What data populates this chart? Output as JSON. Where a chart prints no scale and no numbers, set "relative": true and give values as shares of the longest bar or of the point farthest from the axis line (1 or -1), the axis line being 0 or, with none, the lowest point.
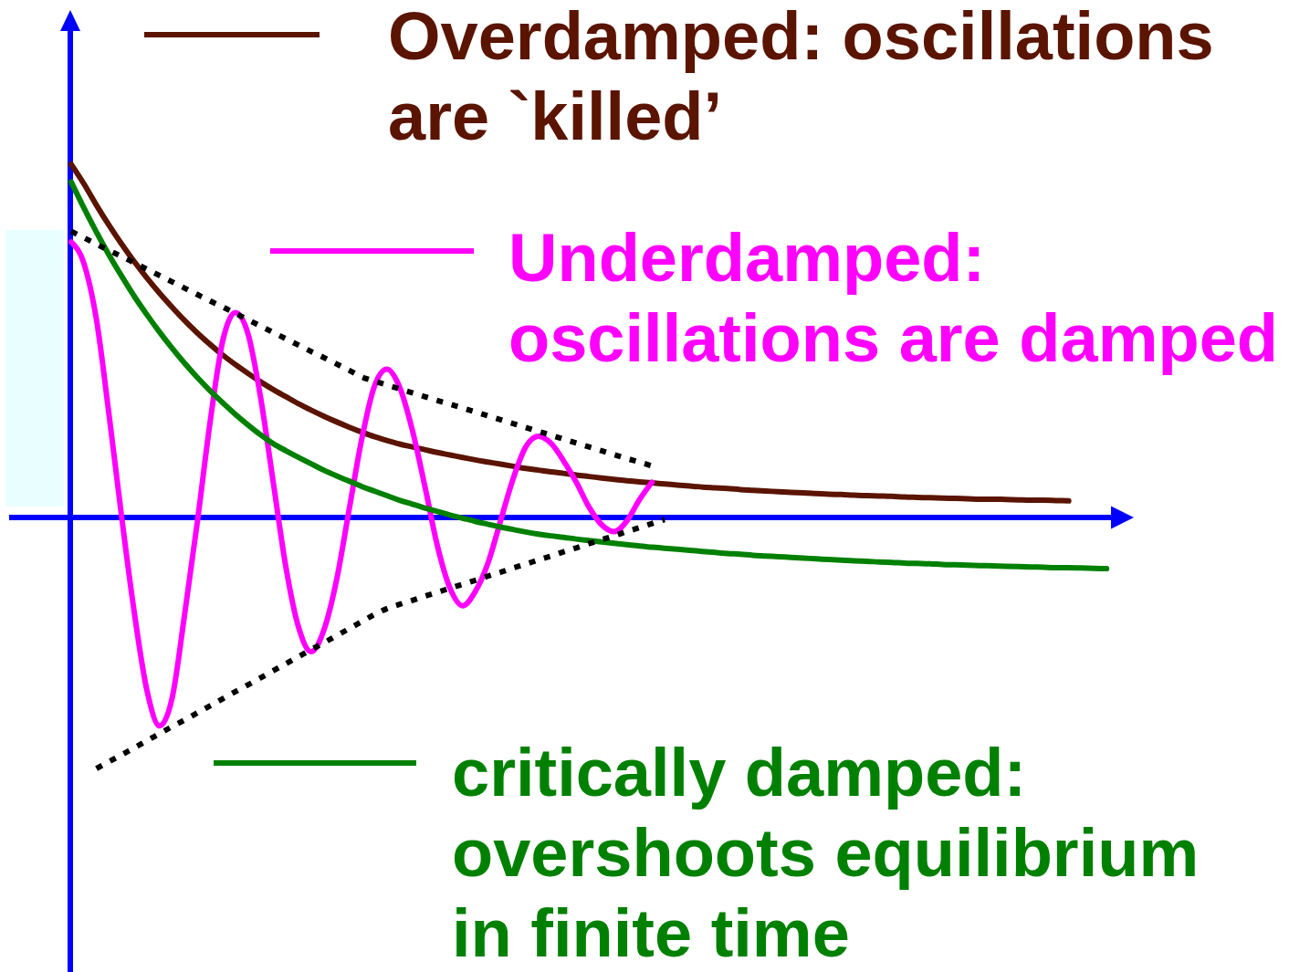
{
  "chart_data": {
    "type": "line",
    "relative": true,
    "legend": "right",
    "categories": [
      null,
      null,
      null,
      null,
      null,
      null,
      null,
      null,
      null,
      null,
      null,
      null,
      null,
      null,
      null,
      null,
      null,
      null,
      null,
      null,
      null,
      null,
      null,
      null,
      null,
      null,
      null,
      null,
      null,
      null,
      null,
      null,
      null,
      null,
      null,
      null,
      null,
      null,
      null,
      null,
      null,
      null,
      null,
      null,
      null,
      null,
      null,
      null,
      null,
      null,
      null,
      null,
      null,
      null,
      null,
      null,
      null,
      null,
      null,
      null,
      null,
      null,
      null,
      null,
      null,
      null,
      null,
      null,
      null,
      null,
      null,
      null,
      null,
      null,
      null,
      null,
      null,
      null,
      null,
      null,
      null,
      null,
      null,
      null
    ],
    "ref_lines": [
      {
        "axis": "y",
        "value": 0,
        "color": "#0000ff"
      }
    ],
    "series": [
      {
        "name": "Overdamped: oscillations are `killed’",
        "color": "#5a1400",
        "values": [
          1,
          0.945,
          0.884,
          0.827,
          0.774,
          0.724,
          0.678,
          0.635,
          0.595,
          0.557,
          0.522,
          0.49,
          0.46,
          0.433,
          0.408,
          0.384,
          0.362,
          0.342,
          0.322,
          0.304,
          0.287,
          0.271,
          0.256,
          0.242,
          0.229,
          0.218,
          0.208,
          0.2,
          0.192,
          0.184,
          0.177,
          0.17,
          0.163,
          0.157,
          0.151,
          0.145,
          0.139,
          0.134,
          0.129,
          0.125,
          0.12,
          0.116,
          0.112,
          0.108,
          0.104,
          0.101,
          0.098,
          0.095,
          0.092,
          0.089,
          0.086,
          0.084,
          0.082,
          0.079,
          0.077,
          0.075,
          0.073,
          0.071,
          0.07,
          0.068,
          0.066,
          0.065,
          0.063,
          0.062,
          0.061,
          0.06,
          0.058,
          0.057,
          0.056,
          0.055,
          0.054,
          0.053,
          0.052,
          0.052,
          0.051,
          0.05,
          0.049,
          0.049,
          0.048,
          0.047,
          null,
          null,
          null,
          null
        ]
      },
      {
        "name": "Underdamped: oscillations are damped",
        "color": "#ff00ff",
        "values": [
          0.78,
          0.72,
          0.56,
          0.29,
          0.0,
          -0.27,
          -0.49,
          -0.59,
          -0.51,
          -0.27,
          -0.01,
          0.27,
          0.5,
          0.58,
          0.52,
          0.34,
          0.1,
          -0.14,
          -0.31,
          -0.38,
          -0.32,
          -0.18,
          0.02,
          0.22,
          0.37,
          0.42,
          0.37,
          0.25,
          0.09,
          -0.08,
          -0.2,
          -0.25,
          -0.21,
          -0.13,
          -0.01,
          0.11,
          0.2,
          0.23,
          0.21,
          0.16,
          0.1,
          0.03,
          -0.02,
          -0.04,
          -0.01,
          0.05,
          0.1,
          null,
          null,
          null,
          null,
          null,
          null,
          null,
          null,
          null,
          null,
          null,
          null,
          null,
          null,
          null,
          null,
          null,
          null,
          null,
          null,
          null,
          null,
          null,
          null,
          null,
          null,
          null,
          null,
          null,
          null,
          null,
          null,
          null,
          null,
          null,
          null,
          null
        ]
      },
      {
        "name": "critically damped: overshoots equilibrium in finite time",
        "color": "#008000",
        "values": [
          0.95,
          0.877,
          0.808,
          0.743,
          0.683,
          0.626,
          0.574,
          0.525,
          0.479,
          0.436,
          0.396,
          0.359,
          0.325,
          0.292,
          0.262,
          0.234,
          0.209,
          0.189,
          0.17,
          0.152,
          0.134,
          0.118,
          0.103,
          0.088,
          0.075,
          0.062,
          0.049,
          0.038,
          0.027,
          0.017,
          0.007,
          -0.002,
          -0.011,
          -0.019,
          -0.027,
          -0.034,
          -0.041,
          -0.047,
          -0.052,
          -0.056,
          -0.061,
          -0.065,
          -0.069,
          -0.073,
          -0.077,
          -0.081,
          -0.084,
          -0.087,
          -0.09,
          -0.093,
          -0.096,
          -0.099,
          -0.102,
          -0.104,
          -0.107,
          -0.109,
          -0.111,
          -0.113,
          -0.115,
          -0.117,
          -0.119,
          -0.121,
          -0.123,
          -0.124,
          -0.126,
          -0.127,
          -0.129,
          -0.13,
          -0.131,
          -0.133,
          -0.134,
          -0.135,
          -0.136,
          -0.137,
          -0.138,
          -0.139,
          -0.14,
          -0.141,
          -0.142,
          -0.142,
          -0.143,
          -0.144,
          -0.145,
          null
        ]
      },
      {
        "color": "#000000",
        "line_style": "dotted",
        "values": [
          0.81,
          0.792,
          0.774,
          0.756,
          0.739,
          0.721,
          0.703,
          0.685,
          0.667,
          0.649,
          0.631,
          0.613,
          0.596,
          0.578,
          0.56,
          0.542,
          0.524,
          0.506,
          0.488,
          0.47,
          0.453,
          0.435,
          0.417,
          0.398,
          0.386,
          0.375,
          0.364,
          0.353,
          0.342,
          0.331,
          0.321,
          0.31,
          0.299,
          0.288,
          0.277,
          0.266,
          0.255,
          0.244,
          0.233,
          0.222,
          0.211,
          0.2,
          0.189,
          0.178,
          0.167,
          0.157,
          0.146,
          null,
          null,
          null,
          null,
          null,
          null,
          null,
          null,
          null,
          null,
          null,
          null,
          null,
          null,
          null,
          null,
          null,
          null,
          null,
          null,
          null,
          null,
          null,
          null,
          null,
          null,
          null,
          null,
          null,
          null,
          null,
          null,
          null,
          null,
          null,
          null,
          null
        ]
      },
      {
        "color": "#000000",
        "line_style": "dotted",
        "values": [
          null,
          null,
          -0.711,
          -0.691,
          -0.672,
          -0.652,
          -0.632,
          -0.612,
          -0.592,
          -0.573,
          -0.553,
          -0.533,
          -0.513,
          -0.493,
          -0.474,
          -0.454,
          -0.434,
          -0.414,
          -0.394,
          -0.374,
          -0.355,
          -0.335,
          -0.315,
          -0.295,
          -0.275,
          -0.258,
          -0.246,
          -0.235,
          -0.223,
          -0.212,
          -0.2,
          -0.189,
          -0.178,
          -0.166,
          -0.155,
          -0.143,
          -0.132,
          -0.12,
          -0.109,
          -0.097,
          -0.086,
          -0.074,
          -0.063,
          -0.052,
          -0.04,
          -0.029,
          -0.017,
          -0.006,
          null,
          null,
          null,
          null,
          null,
          null,
          null,
          null,
          null,
          null,
          null,
          null,
          null,
          null,
          null,
          null,
          null,
          null,
          null,
          null,
          null,
          null,
          null,
          null,
          null,
          null,
          null,
          null,
          null,
          null,
          null,
          null,
          null,
          null,
          null,
          null
        ]
      }
    ]
  }
}
